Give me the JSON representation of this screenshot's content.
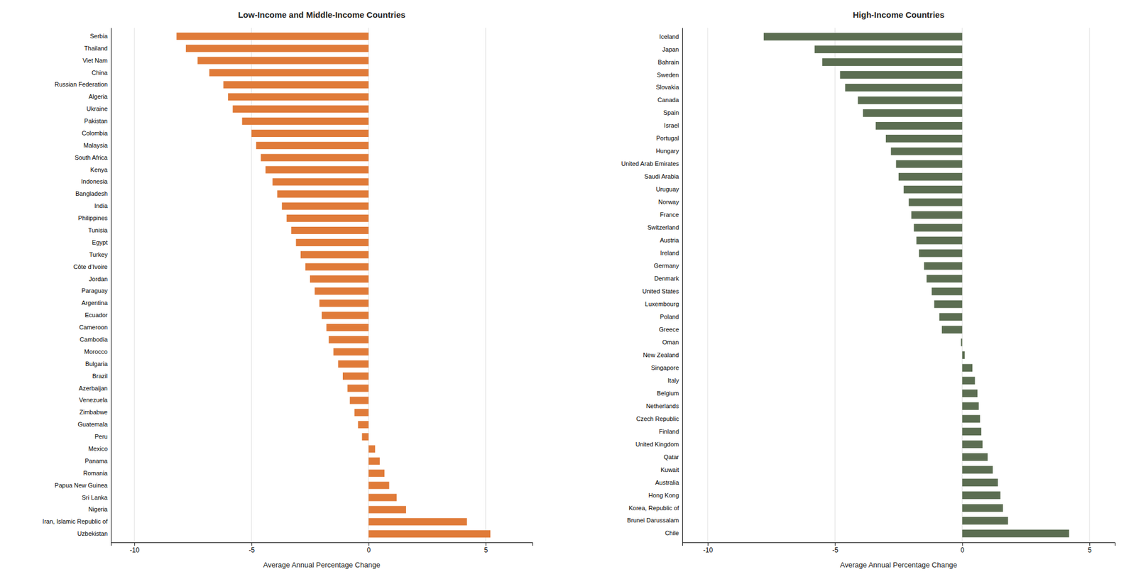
{
  "chart_data": [
    {
      "type": "bar",
      "orientation": "horizontal",
      "title": "Low-Income and Middle-Income Countries",
      "categories": [
        "Serbia",
        "Thailand",
        "Viet Nam",
        "China",
        "Russian Federation",
        "Algeria",
        "Ukraine",
        "Pakistan",
        "Colombia",
        "Malaysia",
        "South Africa",
        "Kenya",
        "Indonesia",
        "Bangladesh",
        "India",
        "Philippines",
        "Tunisia",
        "Egypt",
        "Turkey",
        "Côte d’Ivoire",
        "Jordan",
        "Paraguay",
        "Argentina",
        "Ecuador",
        "Cameroon",
        "Cambodia",
        "Morocco",
        "Bulgaria",
        "Brazil",
        "Azerbaijan",
        "Venezuela",
        "Zimbabwe",
        "Guatemala",
        "Peru",
        "Mexico",
        "Panama",
        "Romania",
        "Papua New Guinea",
        "Sri Lanka",
        "Nigeria",
        "Iran, Islamic Republic of",
        "Uzbekistan"
      ],
      "values": [
        -8.2,
        -7.8,
        -7.3,
        -6.8,
        -6.2,
        -6.0,
        -5.8,
        -5.4,
        -5.0,
        -4.8,
        -4.6,
        -4.4,
        -4.1,
        -3.9,
        -3.7,
        -3.5,
        -3.3,
        -3.1,
        -2.9,
        -2.7,
        -2.5,
        -2.3,
        -2.1,
        -2.0,
        -1.8,
        -1.7,
        -1.5,
        -1.3,
        -1.1,
        -0.9,
        -0.8,
        -0.6,
        -0.45,
        -0.28,
        0.28,
        0.48,
        0.68,
        0.88,
        1.2,
        1.6,
        4.2,
        5.2
      ],
      "color": "#E07B39",
      "xlabel": "Average Annual Percentage Change",
      "xlim": [
        -11,
        7
      ],
      "xticks": [
        -10,
        -5,
        0,
        5
      ],
      "grid": true
    },
    {
      "type": "bar",
      "orientation": "horizontal",
      "title": "High-Income Countries",
      "categories": [
        "Iceland",
        "Japan",
        "Bahrain",
        "Sweden",
        "Slovakia",
        "Canada",
        "Spain",
        "Israel",
        "Portugal",
        "Hungary",
        "United Arab Emirates",
        "Saudi Arabia",
        "Uruguay",
        "Norway",
        "France",
        "Switzerland",
        "Austria",
        "Ireland",
        "Germany",
        "Denmark",
        "United States",
        "Luxembourg",
        "Poland",
        "Greece",
        "Oman",
        "New Zealand",
        "Singapore",
        "Italy",
        "Belgium",
        "Netherlands",
        "Czech Republic",
        "Finland",
        "United Kingdom",
        "Qatar",
        "Kuwait",
        "Australia",
        "Hong Kong",
        "Korea, Republic of",
        "Brunei Darussalam",
        "Chile"
      ],
      "values": [
        -7.8,
        -5.8,
        -5.5,
        -4.8,
        -4.6,
        -4.1,
        -3.9,
        -3.4,
        -3.0,
        -2.8,
        -2.6,
        -2.5,
        -2.3,
        -2.1,
        -2.0,
        -1.9,
        -1.8,
        -1.7,
        -1.5,
        -1.4,
        -1.2,
        -1.1,
        -0.9,
        -0.8,
        -0.05,
        0.1,
        0.4,
        0.5,
        0.6,
        0.65,
        0.7,
        0.75,
        0.8,
        1.0,
        1.2,
        1.4,
        1.5,
        1.6,
        1.8,
        4.2
      ],
      "color": "#5C6E52",
      "xlabel": "Average Annual Percentage Change",
      "xlim": [
        -11,
        6
      ],
      "xticks": [
        -10,
        -5,
        0,
        5
      ],
      "grid": true
    }
  ]
}
